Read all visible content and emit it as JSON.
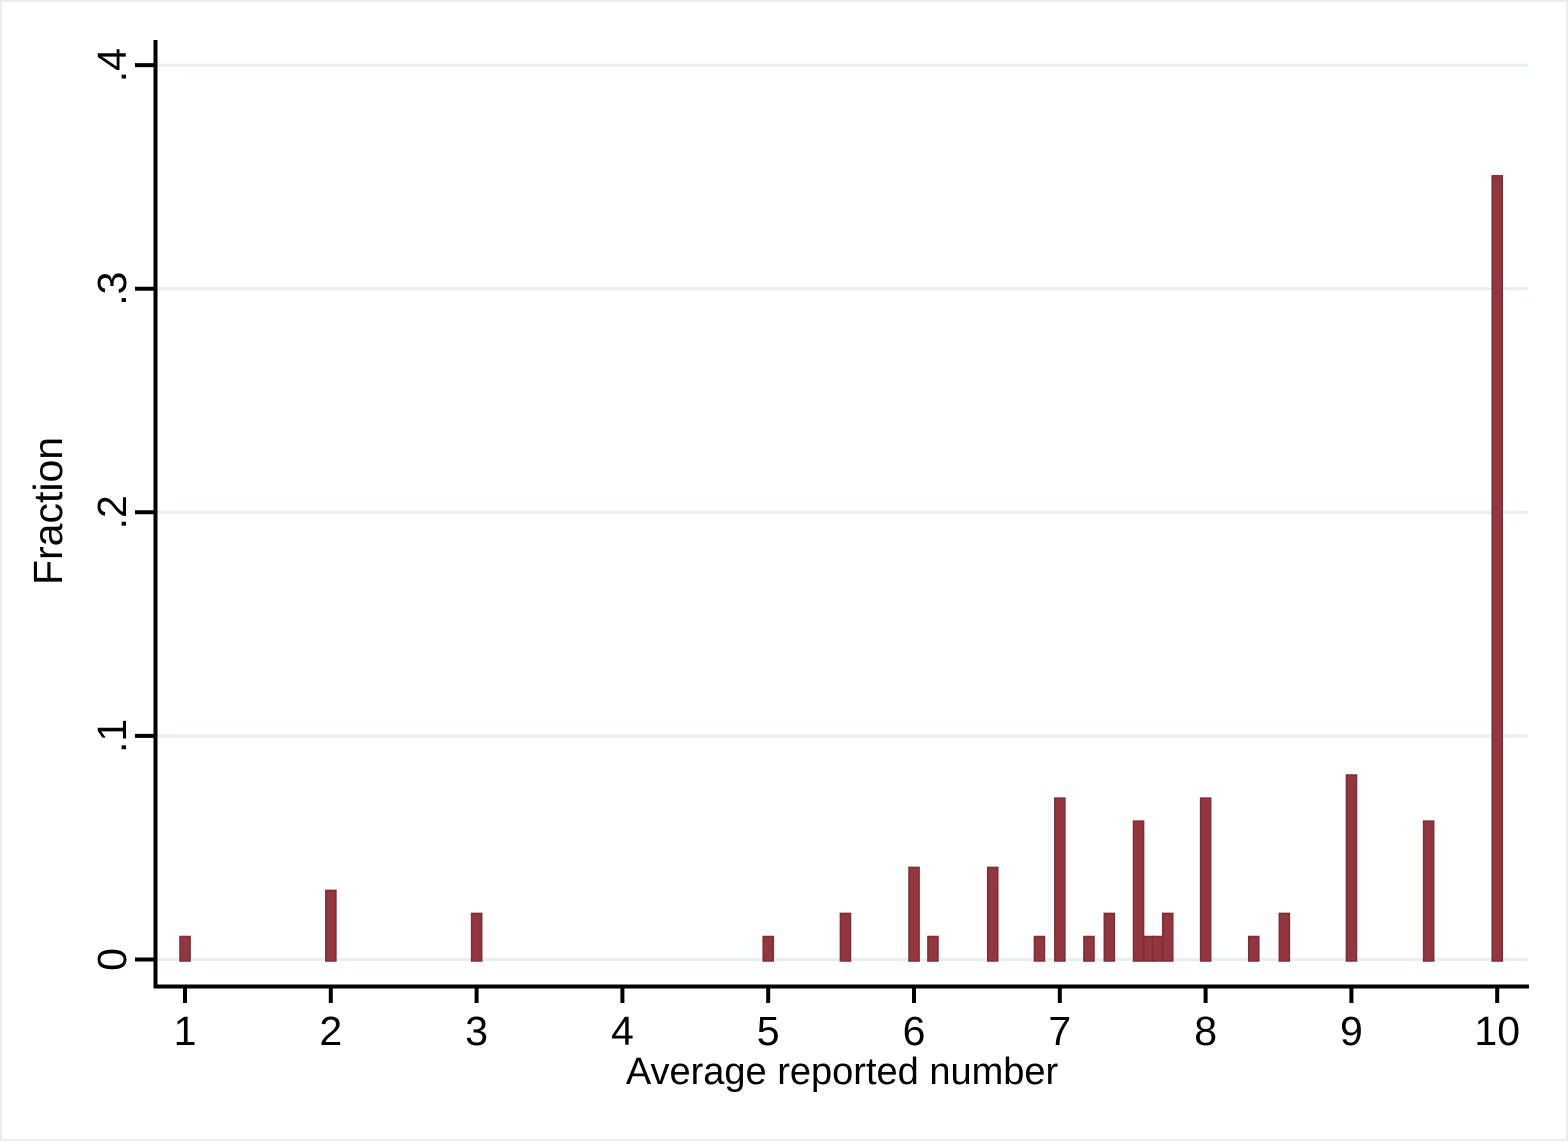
{
  "figure": {
    "background_color": "#ffffff",
    "border_color": "#e9eff1"
  },
  "chart_data": {
    "type": "bar",
    "title": "",
    "xlabel": "Average reported number",
    "ylabel": "Fraction",
    "xlim": [
      0.79,
      10.21
    ],
    "ylim": [
      0,
      0.4
    ],
    "x_ticks": [
      1,
      2,
      3,
      4,
      5,
      6,
      7,
      8,
      9,
      10
    ],
    "x_tick_labels": [
      "1",
      "2",
      "3",
      "4",
      "5",
      "6",
      "7",
      "8",
      "9",
      "10"
    ],
    "y_ticks": [
      0,
      0.1,
      0.2,
      0.3,
      0.4
    ],
    "y_tick_labels": [
      "0",
      ".1",
      ".2",
      ".3",
      ".4"
    ],
    "grid": true,
    "legend": "none",
    "bar_width_data_units": 0.069,
    "bar_fill_color": "#93363e",
    "bar_border_color": "#7d2d35",
    "gridline_color": "#e7eff1",
    "axis_color": "#000000",
    "points": [
      {
        "x": 1.0,
        "fraction": 0.0103
      },
      {
        "x": 2.0,
        "fraction": 0.0309
      },
      {
        "x": 3.0,
        "fraction": 0.0206
      },
      {
        "x": 5.0,
        "fraction": 0.0103
      },
      {
        "x": 5.53,
        "fraction": 0.0206
      },
      {
        "x": 6.0,
        "fraction": 0.0412
      },
      {
        "x": 6.13,
        "fraction": 0.0103
      },
      {
        "x": 6.54,
        "fraction": 0.0412
      },
      {
        "x": 6.86,
        "fraction": 0.0103
      },
      {
        "x": 7.0,
        "fraction": 0.0722
      },
      {
        "x": 7.2,
        "fraction": 0.0103
      },
      {
        "x": 7.34,
        "fraction": 0.0206
      },
      {
        "x": 7.54,
        "fraction": 0.0619
      },
      {
        "x": 7.61,
        "fraction": 0.0103
      },
      {
        "x": 7.67,
        "fraction": 0.0103
      },
      {
        "x": 7.74,
        "fraction": 0.0206
      },
      {
        "x": 8.0,
        "fraction": 0.0722
      },
      {
        "x": 8.33,
        "fraction": 0.0103
      },
      {
        "x": 8.54,
        "fraction": 0.0206
      },
      {
        "x": 9.0,
        "fraction": 0.0825
      },
      {
        "x": 9.53,
        "fraction": 0.0619
      },
      {
        "x": 10.0,
        "fraction": 0.3505
      }
    ]
  }
}
